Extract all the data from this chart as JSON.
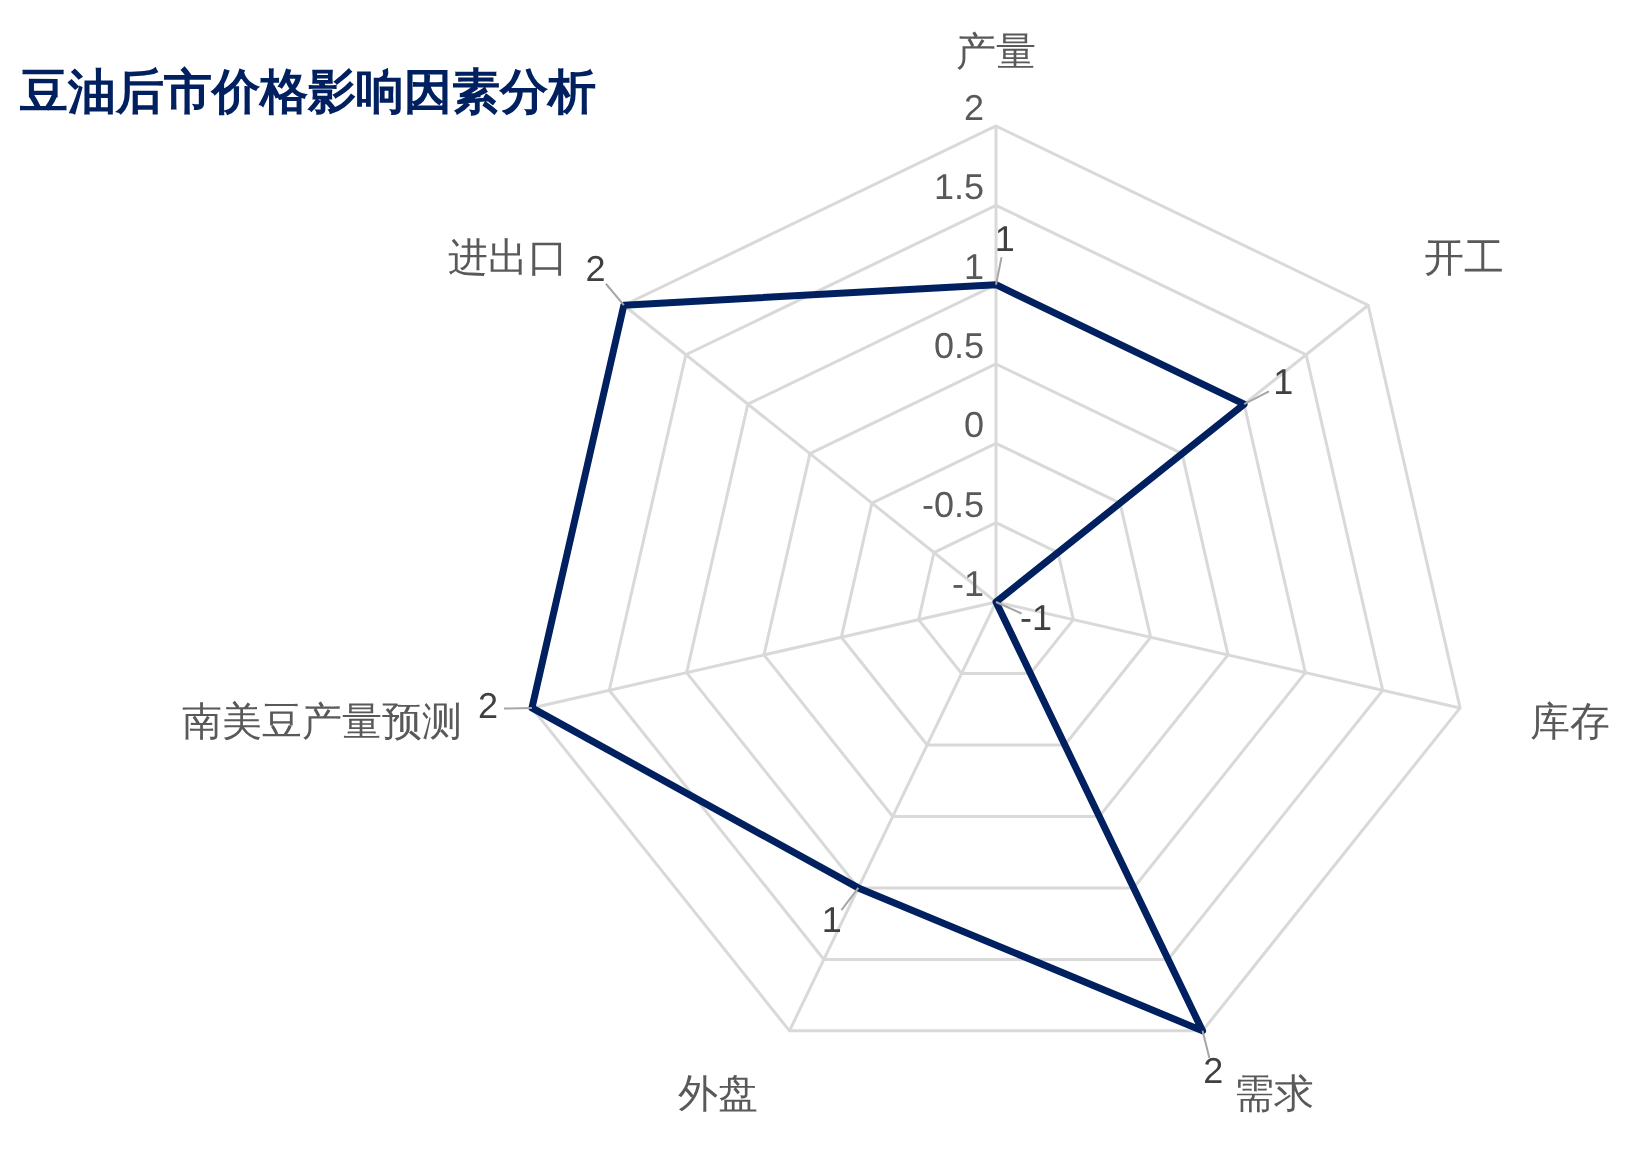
{
  "chart_data": {
    "type": "radar",
    "title": "豆油后市价格影响因素分析",
    "categories": [
      "产量",
      "开工",
      "库存",
      "需求",
      "外盘",
      "南美豆产量预测",
      "进出口"
    ],
    "series": [
      {
        "color": "#002060",
        "values": [
          1,
          1,
          -1,
          2,
          1,
          2,
          2
        ]
      }
    ],
    "ylim": [
      -1,
      2
    ],
    "yticks": [
      -1,
      -0.5,
      0,
      0.5,
      1,
      1.5,
      2
    ],
    "data_labels": true,
    "grid": true
  }
}
